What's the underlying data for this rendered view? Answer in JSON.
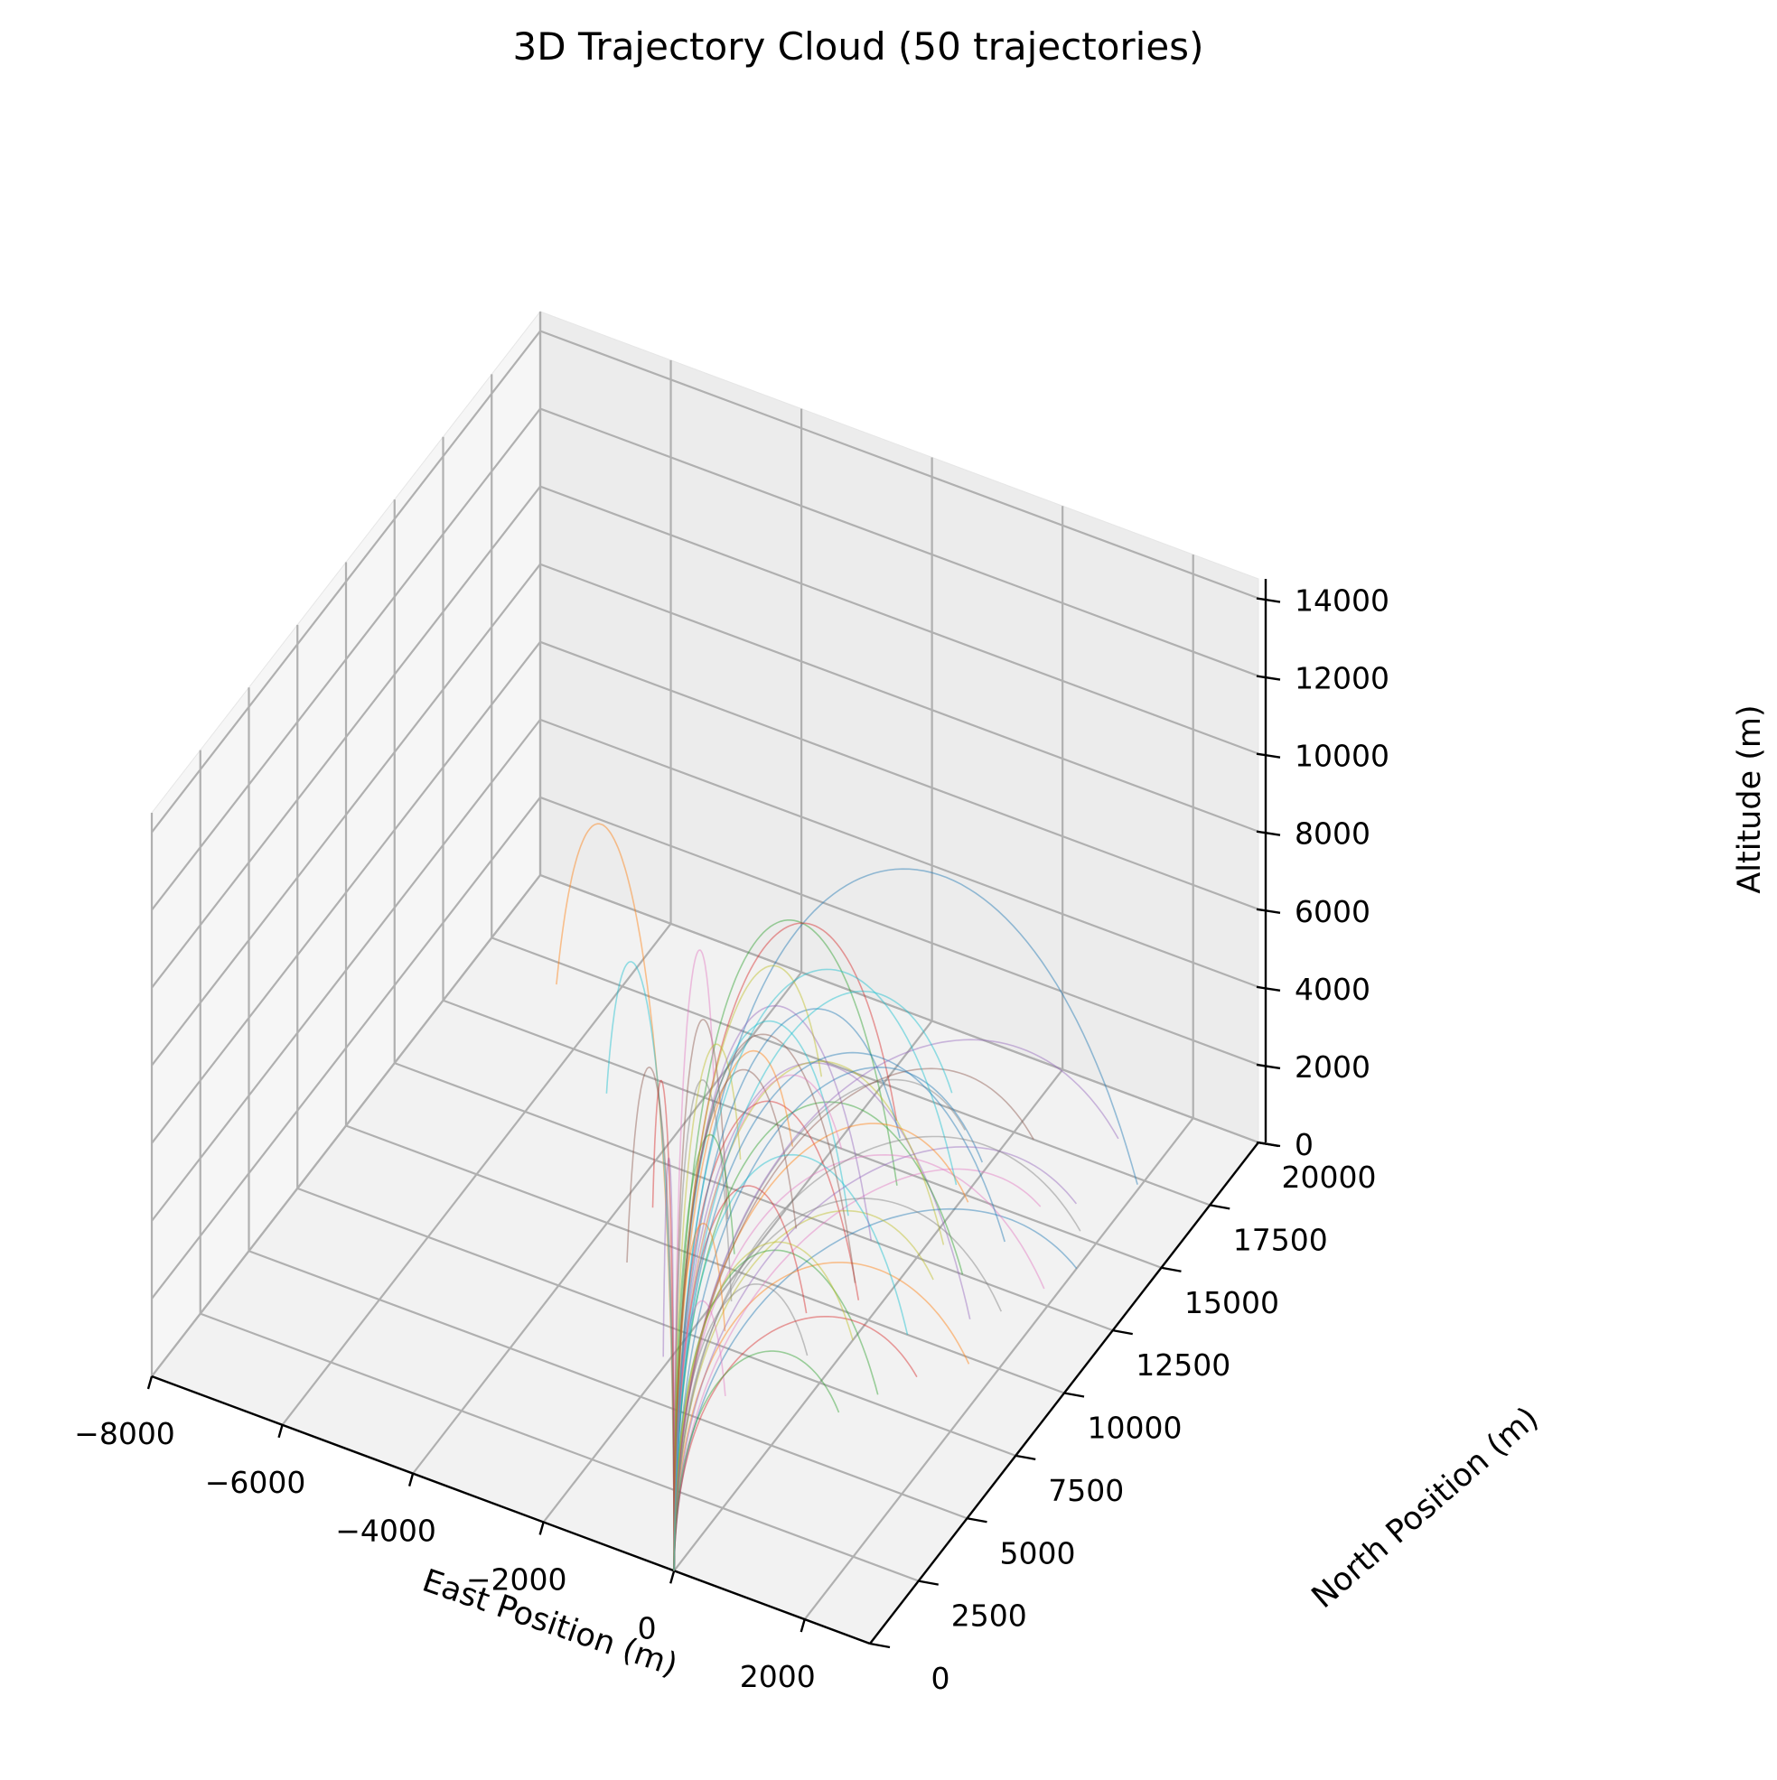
{
  "chart_data": {
    "type": "line",
    "projection": "3d",
    "title": "3D Trajectory Cloud (50 trajectories)",
    "xlabel": "East Position (m)",
    "ylabel": "North Position (m)",
    "zlabel": "Altitude (m)",
    "xlim": [
      -8000,
      3000
    ],
    "ylim": [
      0,
      20000
    ],
    "zlim": [
      0,
      14500
    ],
    "x_ticks": [
      -8000,
      -6000,
      -4000,
      -2000,
      0,
      2000
    ],
    "x_tick_labels": [
      "−8000",
      "−6000",
      "−4000",
      "−2000",
      "0",
      "2000"
    ],
    "y_ticks": [
      0,
      2500,
      5000,
      7500,
      10000,
      12500,
      15000,
      17500,
      20000
    ],
    "y_tick_labels": [
      "0",
      "2500",
      "5000",
      "7500",
      "10000",
      "12500",
      "15000",
      "17500",
      "20000"
    ],
    "z_ticks": [
      0,
      2000,
      4000,
      6000,
      8000,
      10000,
      12000,
      14000
    ],
    "z_tick_labels": [
      "0",
      "2000",
      "4000",
      "6000",
      "8000",
      "10000",
      "12000",
      "14000"
    ],
    "grid": true,
    "legend": "none",
    "colors": [
      "#1f77b4",
      "#ff7f0e",
      "#2ca02c",
      "#d62728",
      "#9467bd",
      "#8c564b",
      "#e377c2",
      "#7f7f7f",
      "#bcbd22",
      "#17becf"
    ],
    "launch_point": {
      "east": 0,
      "north": 0,
      "altitude": 0
    },
    "series": [
      {
        "land_east": 1950,
        "land_north": 17300,
        "apogee": 14000
      },
      {
        "land_east": -6800,
        "land_north": 16800,
        "apogee": 12000
      },
      {
        "land_east": -900,
        "land_north": 14500,
        "apogee": 12600
      },
      {
        "land_east": -1500,
        "land_north": 16500,
        "apogee": 11500
      },
      {
        "land_east": 1200,
        "land_north": 11200,
        "apogee": 10500
      },
      {
        "land_east": -2600,
        "land_north": 11500,
        "apogee": 10300
      },
      {
        "land_east": -4000,
        "land_north": 15500,
        "apogee": 10000
      },
      {
        "land_east": -1800,
        "land_north": 9000,
        "apogee": 9800
      },
      {
        "land_east": 200,
        "land_north": 13200,
        "apogee": 9500
      },
      {
        "land_east": -5200,
        "land_north": 14000,
        "apogee": 9800
      },
      {
        "land_east": 2000,
        "land_north": 14000,
        "apogee": 5400
      },
      {
        "land_east": 1600,
        "land_north": 9800,
        "apogee": 5600
      },
      {
        "land_east": 700,
        "land_north": 12500,
        "apogee": 8800
      },
      {
        "land_east": -300,
        "land_north": 10500,
        "apogee": 9200
      },
      {
        "land_east": -2100,
        "land_north": 6500,
        "apogee": 8400
      },
      {
        "land_east": -3400,
        "land_north": 9000,
        "apogee": 9600
      },
      {
        "land_east": 1000,
        "land_north": 15500,
        "apogee": 5200
      },
      {
        "land_east": -600,
        "land_north": 17000,
        "apogee": 6500
      },
      {
        "land_east": 400,
        "land_north": 12000,
        "apogee": 5600
      },
      {
        "land_east": -1200,
        "land_north": 13000,
        "apogee": 10200
      },
      {
        "land_east": -100,
        "land_north": 16200,
        "apogee": 7800
      },
      {
        "land_east": -2500,
        "land_north": 14500,
        "apogee": 8000
      },
      {
        "land_east": 800,
        "land_north": 7800,
        "apogee": 6400
      },
      {
        "land_east": -800,
        "land_north": 9500,
        "apogee": 7000
      },
      {
        "land_east": 1400,
        "land_north": 16000,
        "apogee": 6000
      },
      {
        "land_east": -1700,
        "land_north": 12000,
        "apogee": 9000
      },
      {
        "land_east": 1800,
        "land_north": 13000,
        "apogee": 7500
      },
      {
        "land_east": -400,
        "land_north": 8200,
        "apogee": 4800
      },
      {
        "land_east": -3000,
        "land_north": 13500,
        "apogee": 8500
      },
      {
        "land_east": 600,
        "land_north": 10000,
        "apogee": 8200
      },
      {
        "land_east": -1300,
        "land_north": 16000,
        "apogee": 9200
      },
      {
        "land_east": 100,
        "land_north": 14800,
        "apogee": 6800
      },
      {
        "land_east": -2200,
        "land_north": 10500,
        "apogee": 7500
      },
      {
        "land_east": 1100,
        "land_north": 8800,
        "apogee": 4200
      },
      {
        "land_east": -700,
        "land_north": 12500,
        "apogee": 11000
      },
      {
        "land_east": 300,
        "land_north": 17500,
        "apogee": 7200
      },
      {
        "land_east": -1000,
        "land_north": 6000,
        "apogee": 5000
      },
      {
        "land_east": 1500,
        "land_north": 11800,
        "apogee": 6600
      },
      {
        "land_east": -2800,
        "land_north": 17000,
        "apogee": 9300
      },
      {
        "land_east": -200,
        "land_north": 15200,
        "apogee": 11200
      },
      {
        "land_east": 900,
        "land_north": 14000,
        "apogee": 9700
      },
      {
        "land_east": -1600,
        "land_north": 8000,
        "apogee": 6200
      },
      {
        "land_east": 500,
        "land_north": 6800,
        "apogee": 3800
      },
      {
        "land_east": -3600,
        "land_north": 11000,
        "apogee": 8300
      },
      {
        "land_east": 1300,
        "land_north": 18500,
        "apogee": 8200
      },
      {
        "land_east": -500,
        "land_north": 11000,
        "apogee": 10800
      },
      {
        "land_east": -1900,
        "land_north": 15000,
        "apogee": 7200
      },
      {
        "land_east": 1700,
        "land_north": 15200,
        "apogee": 7000
      },
      {
        "land_east": 0,
        "land_north": 9200,
        "apogee": 5800
      },
      {
        "land_east": -1100,
        "land_north": 18000,
        "apogee": 8800
      }
    ]
  }
}
